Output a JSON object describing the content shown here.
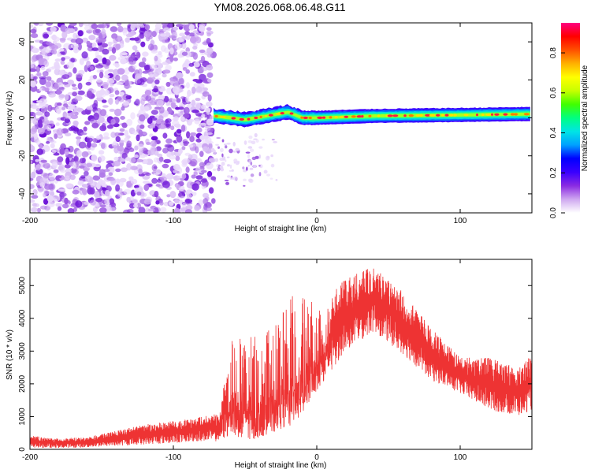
{
  "title": "YM08.2026.068.06.48.G11",
  "chart_data": [
    {
      "type": "heatmap",
      "xlabel": "Height of straight line (km)",
      "ylabel": "Frequency (Hz)",
      "xlim": [
        -200,
        150
      ],
      "ylim": [
        -50,
        50
      ],
      "xticks": [
        -200,
        -100,
        0,
        100
      ],
      "yticks": [
        -40,
        -20,
        0,
        20,
        40
      ],
      "grid": false,
      "colorbar": {
        "label": "Normalized spectral amplitude",
        "range": [
          0,
          0.95
        ],
        "ticks": [
          "0.0",
          "0.2",
          "0.4",
          "0.6",
          "0.8"
        ],
        "colors": [
          "#ffffff",
          "#cfa8f0",
          "#8a2be2",
          "#3a00ff",
          "#0000ff",
          "#00a0ff",
          "#00e5e5",
          "#00ff80",
          "#40ff00",
          "#c8ff00",
          "#ffff00",
          "#ffb000",
          "#ff5000",
          "#ff0000",
          "#ff0080"
        ]
      },
      "signal_start_km": -72,
      "signal_ridge": [
        {
          "x": -72,
          "freq": 1.0
        },
        {
          "x": -60,
          "freq": 0.0
        },
        {
          "x": -50,
          "freq": -1.0
        },
        {
          "x": -35,
          "freq": 1.0
        },
        {
          "x": -20,
          "freq": 3.0
        },
        {
          "x": -10,
          "freq": 0.0
        },
        {
          "x": 0,
          "freq": 0.0
        },
        {
          "x": 40,
          "freq": 1.0
        },
        {
          "x": 100,
          "freq": 1.5
        },
        {
          "x": 150,
          "freq": 2.0
        }
      ]
    },
    {
      "type": "line",
      "xlabel": "Height of straight line (km)",
      "ylabel": "SNR (10 * v/v)",
      "xlim": [
        -200,
        150
      ],
      "ylim": [
        0,
        5800
      ],
      "xticks": [
        -200,
        -100,
        0,
        100
      ],
      "yticks": [
        0,
        1000,
        2000,
        3000,
        4000,
        5000
      ],
      "grid": false,
      "series": [
        {
          "color": "#ee3333",
          "envelope": [
            {
              "x": -200,
              "low": 50,
              "high": 420
            },
            {
              "x": -180,
              "low": 40,
              "high": 330
            },
            {
              "x": -160,
              "low": 60,
              "high": 380
            },
            {
              "x": -140,
              "low": 100,
              "high": 560
            },
            {
              "x": -120,
              "low": 150,
              "high": 760
            },
            {
              "x": -100,
              "low": 190,
              "high": 860
            },
            {
              "x": -80,
              "low": 250,
              "high": 1000
            },
            {
              "x": -68,
              "low": 240,
              "high": 1120
            },
            {
              "x": -60,
              "low": 400,
              "high": 3300
            },
            {
              "x": -45,
              "low": 300,
              "high": 3500
            },
            {
              "x": -30,
              "low": 500,
              "high": 3700
            },
            {
              "x": -15,
              "low": 800,
              "high": 4900
            },
            {
              "x": 0,
              "low": 1800,
              "high": 4400
            },
            {
              "x": 20,
              "low": 3000,
              "high": 5200
            },
            {
              "x": 40,
              "low": 3600,
              "high": 5600
            },
            {
              "x": 60,
              "low": 2900,
              "high": 4800
            },
            {
              "x": 80,
              "low": 2100,
              "high": 3700
            },
            {
              "x": 100,
              "low": 1700,
              "high": 2800
            },
            {
              "x": 120,
              "low": 1200,
              "high": 2800
            },
            {
              "x": 140,
              "low": 1000,
              "high": 2500
            },
            {
              "x": 150,
              "low": 1200,
              "high": 2900
            }
          ]
        }
      ]
    }
  ]
}
